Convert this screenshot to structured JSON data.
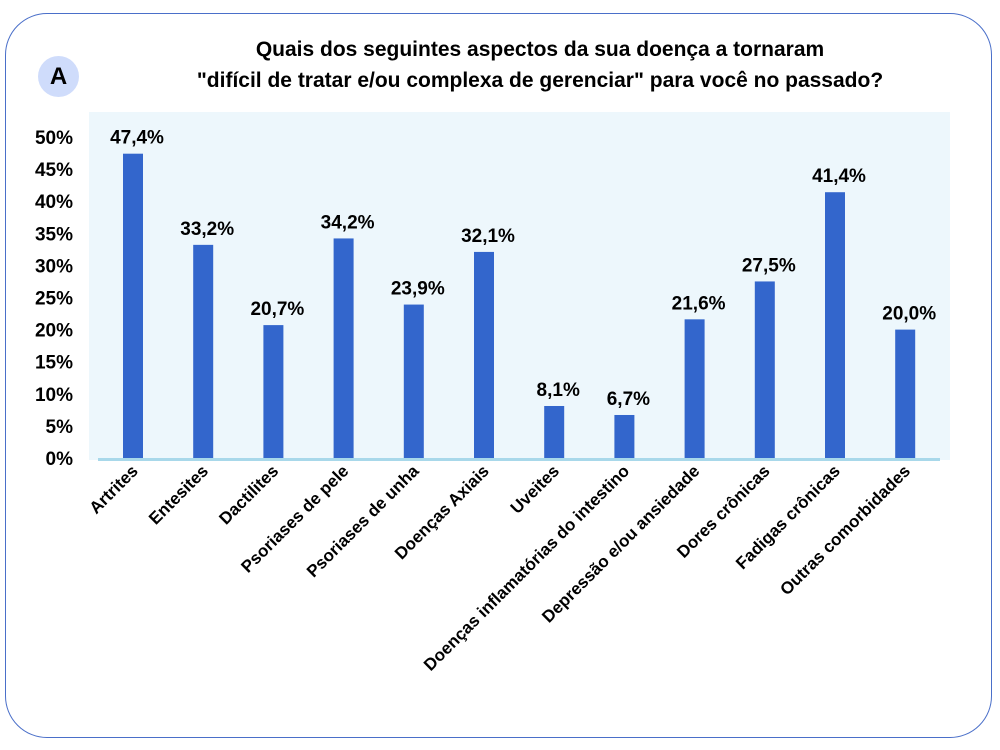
{
  "badge": "A",
  "chart_data": {
    "type": "bar",
    "title_lines": [
      "Quais dos seguintes aspectos da sua doença a tornaram",
      "\"difícil de tratar e/ou complexa de gerenciar\" para você no passado?"
    ],
    "categories": [
      "Artrites",
      "Entesites",
      "Dactilites",
      "Psoriases de pele",
      "Psoriases de unha",
      "Doenças Axiais",
      "Uveites",
      "Doenças inflamatórias do intestino",
      "Depressão e/ou ansiedade",
      "Dores crônicas",
      "Fadigas crônicas",
      "Outras comorbidades"
    ],
    "values": [
      47.4,
      33.2,
      20.7,
      34.2,
      23.9,
      32.1,
      8.1,
      6.7,
      21.6,
      27.5,
      41.4,
      20.0
    ],
    "data_labels": [
      "47,4%",
      "33,2%",
      "20,7%",
      "34,2%",
      "23,9%",
      "32,1%",
      "8,1%",
      "6,7%",
      "21,6%",
      "27,5%",
      "41,4%",
      "20,0%"
    ],
    "yticks": [
      "0%",
      "5%",
      "10%",
      "15%",
      "20%",
      "25%",
      "30%",
      "35%",
      "40%",
      "45%",
      "50%"
    ],
    "ylim": [
      0,
      50
    ],
    "grid": false,
    "colors": {
      "bar": "#3366cc",
      "plot_bg": "#edf7fc",
      "axis": "#a8d8ea"
    }
  }
}
